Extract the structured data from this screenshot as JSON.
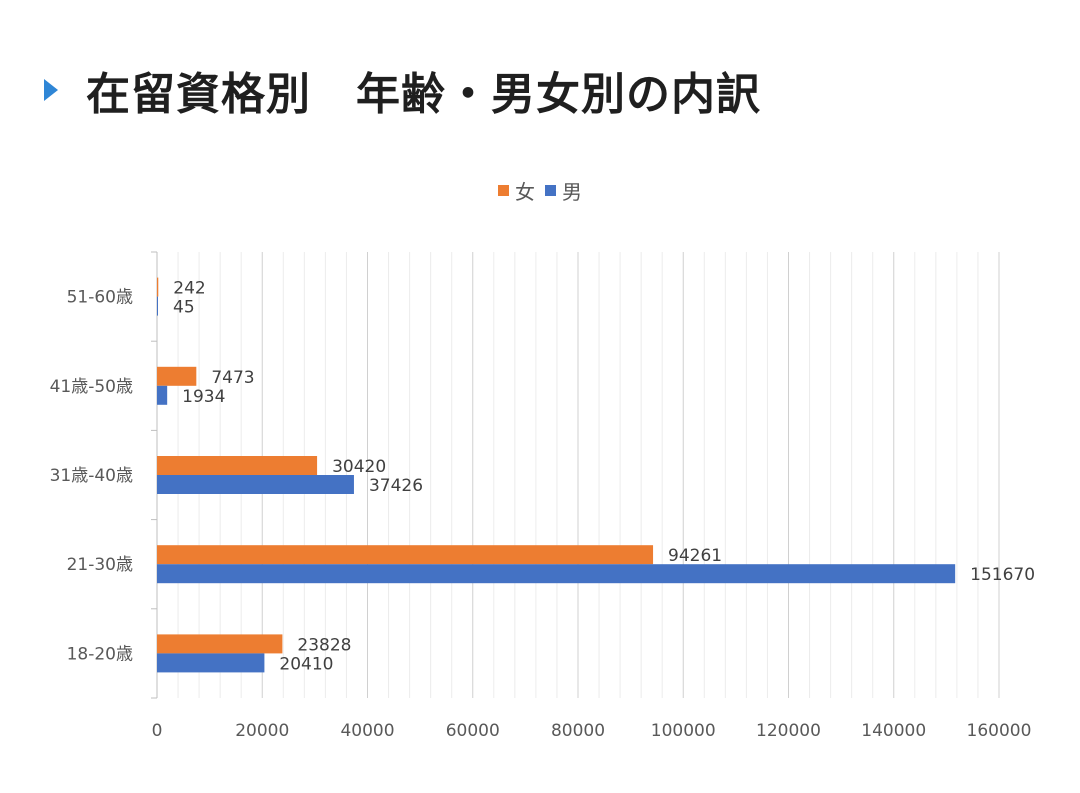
{
  "page": {
    "title": "在留資格別　年齢・男女別の内訳"
  },
  "colors": {
    "female": "#ed7d31",
    "male": "#4472c4",
    "accent": "#2f86d6",
    "grid": "#d9d9d9"
  },
  "chart_data": {
    "type": "bar",
    "orientation": "horizontal",
    "categories": [
      "18-20歳",
      "21-30歳",
      "31歳-40歳",
      "41歳-50歳",
      "51-60歳"
    ],
    "series": [
      {
        "name": "女",
        "values": [
          23828,
          94261,
          30420,
          7473,
          242
        ]
      },
      {
        "name": "男",
        "values": [
          20410,
          151670,
          37426,
          1934,
          45
        ]
      }
    ],
    "xlim": [
      0,
      160000
    ],
    "xticks": [
      0,
      20000,
      40000,
      60000,
      80000,
      100000,
      120000,
      140000,
      160000
    ],
    "grid": true,
    "legend_position": "top",
    "data_labels": true
  }
}
